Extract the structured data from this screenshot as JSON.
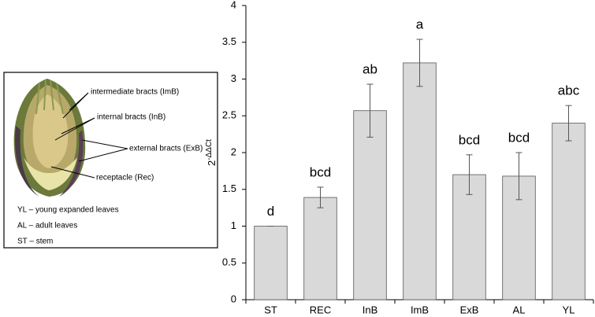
{
  "chart_data": {
    "type": "bar",
    "categories": [
      "ST",
      "REC",
      "InB",
      "ImB",
      "ExB",
      "AL",
      "YL"
    ],
    "values": [
      1.0,
      1.39,
      2.57,
      3.22,
      1.7,
      1.68,
      2.4
    ],
    "errors": [
      0.0,
      0.14,
      0.36,
      0.32,
      0.27,
      0.32,
      0.24
    ],
    "annotations": [
      "d",
      "bcd",
      "ab",
      "a",
      "bcd",
      "bcd",
      "abc"
    ],
    "ylabel": {
      "base": "2",
      "exponent": "-ΔΔCt"
    },
    "color": "#d9d9d9",
    "ylim": [
      0,
      4
    ],
    "yticks": [
      0,
      0.5,
      1,
      1.5,
      2,
      2.5,
      3,
      3.5,
      4
    ]
  },
  "inset": {
    "parts": [
      "intermediate bracts (ImB)",
      "internal bracts (InB)",
      "external bracts (ExB)",
      "receptacle (Rec)"
    ],
    "legend": [
      "YL – young expanded leaves",
      "AL – adult leaves",
      "ST – stem"
    ]
  }
}
